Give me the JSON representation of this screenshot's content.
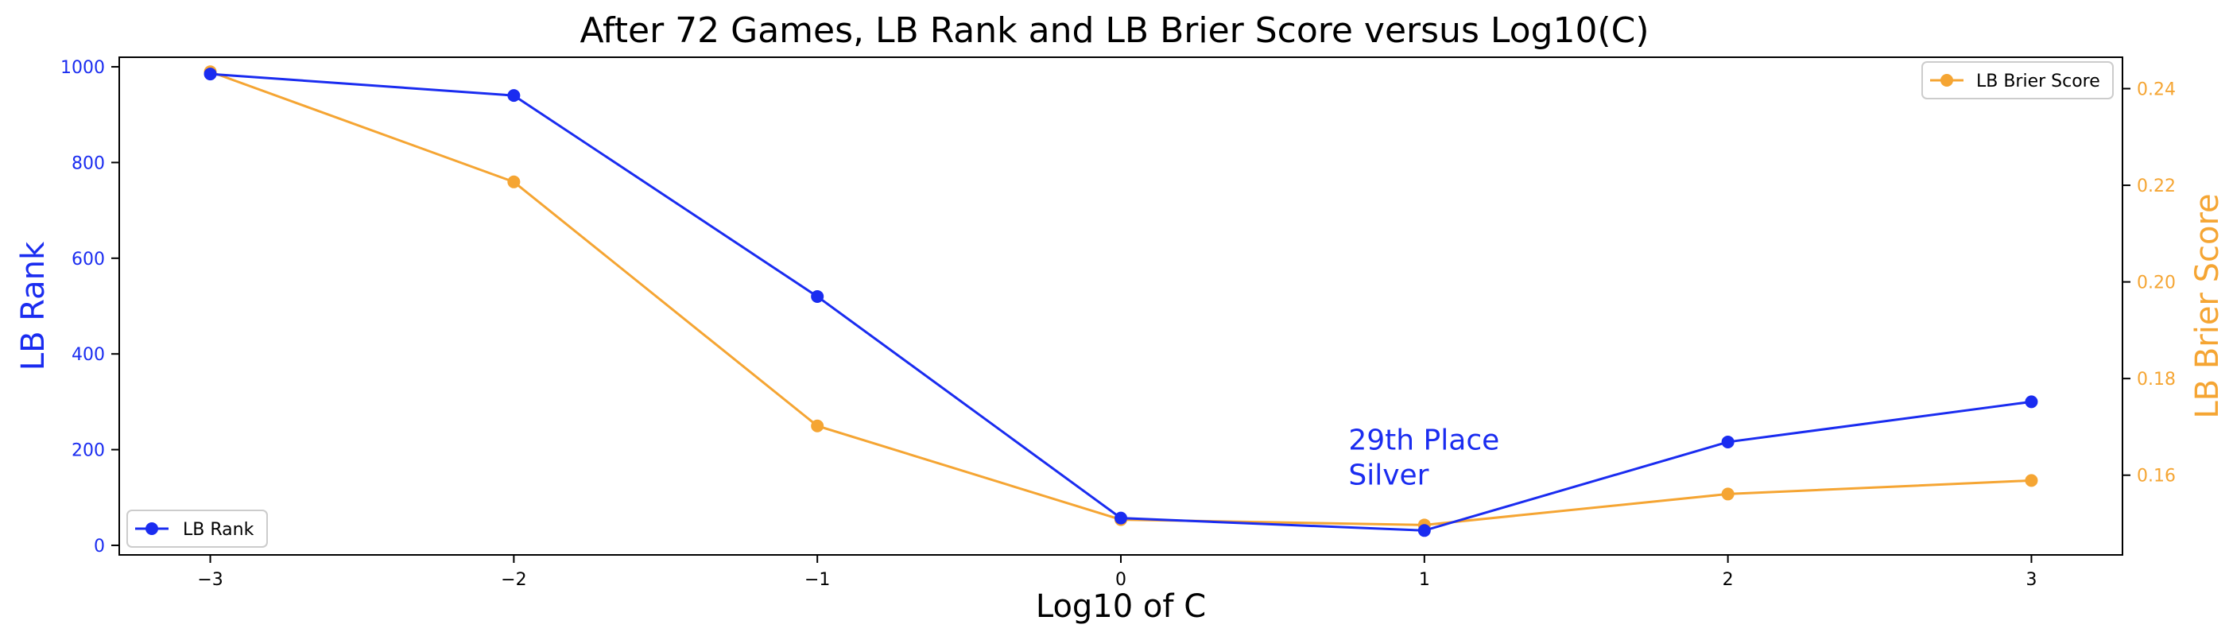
{
  "chart_data": {
    "type": "line",
    "title": "After 72 Games, LB Rank and LB Brier Score versus Log10(C)",
    "xlabel": "Log10 of C",
    "ylabel_left": "LB Rank",
    "ylabel_right": "LB Brier Score",
    "x": [
      -3,
      -2,
      -1,
      0,
      1,
      2,
      3
    ],
    "x_tick_labels": [
      "−3",
      "−2",
      "−1",
      "0",
      "1",
      "2",
      "3"
    ],
    "xlim": [
      -3.3,
      3.3
    ],
    "y_left_lim": [
      -20,
      1020
    ],
    "y_left_ticks": [
      0,
      200,
      400,
      600,
      800,
      1000
    ],
    "y_right_lim": [
      0.1435,
      0.2465
    ],
    "y_right_ticks": [
      0.16,
      0.18,
      0.2,
      0.22,
      0.24
    ],
    "y_right_tick_labels": [
      "0.16",
      "0.18",
      "0.20",
      "0.22",
      "0.24"
    ],
    "grid": false,
    "series": [
      {
        "name": "LB Rank",
        "axis": "left",
        "color": "#1a2cf0",
        "values": [
          985,
          940,
          520,
          57,
          31,
          216,
          300
        ],
        "legend_position": "lower-left"
      },
      {
        "name": "LB Brier Score",
        "axis": "right",
        "color": "#f5a533",
        "values": [
          0.2435,
          0.2207,
          0.1702,
          0.1508,
          0.1497,
          0.1561,
          0.1589
        ],
        "legend_position": "upper-right"
      }
    ],
    "annotation": {
      "lines": [
        "29th Place",
        "Silver"
      ],
      "color": "#1a2cf0",
      "x": 0.75,
      "y_left": 200
    }
  }
}
